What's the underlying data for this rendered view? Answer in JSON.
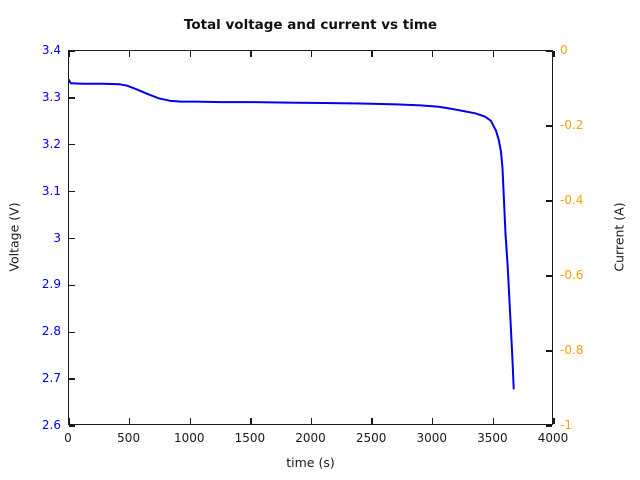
{
  "chart_data": {
    "type": "line",
    "title": "Total voltage and current vs time",
    "xlabel": "time (s)",
    "ylabel_left": "Voltage (V)",
    "ylabel_right": "Current (A)",
    "xlim": [
      0,
      4000
    ],
    "ylim_left": [
      2.6,
      3.4
    ],
    "ylim_right": [
      -1,
      0
    ],
    "grid": false,
    "legend": "none",
    "x_ticks": [
      0,
      500,
      1000,
      1500,
      2000,
      2500,
      3000,
      3500,
      4000
    ],
    "x_tick_labels": [
      "0",
      "500",
      "1000",
      "1500",
      "2000",
      "2500",
      "3000",
      "3500",
      "4000"
    ],
    "y_ticks_left": [
      3.4,
      3.3,
      3.2,
      3.1,
      3.0,
      2.9,
      2.8,
      2.7,
      2.6
    ],
    "y_tick_labels_left": [
      "3.4",
      "3.3",
      "3.2",
      "3.1",
      "3",
      "2.9",
      "2.8",
      "2.7",
      "2.6"
    ],
    "y_ticks_right": [
      0,
      -0.2,
      -0.4,
      -0.6,
      -0.8,
      -1
    ],
    "y_tick_labels_right": [
      "0",
      "-0.2",
      "-0.4",
      "-0.6",
      "-0.8",
      "-1"
    ],
    "colors": {
      "voltage_series": "#0000ee",
      "left_axis_labels": "#0000ee",
      "right_axis_labels": "#f0a30a",
      "axis_frame": "#1a1a1a",
      "title_text": "#111111"
    },
    "series": [
      {
        "name": "Total voltage",
        "axis": "left",
        "color": "#0000ee",
        "x": [
          0,
          15,
          120,
          280,
          420,
          480,
          560,
          650,
          740,
          830,
          920,
          1050,
          1250,
          1500,
          1800,
          2100,
          2400,
          2700,
          2900,
          3050,
          3150,
          3250,
          3350,
          3430,
          3480,
          3522,
          3545,
          3563,
          3575,
          3588,
          3600,
          3618,
          3632,
          3646,
          3658,
          3668
        ],
        "y": [
          3.338,
          3.331,
          3.33,
          3.33,
          3.329,
          3.326,
          3.318,
          3.308,
          3.299,
          3.294,
          3.292,
          3.292,
          3.291,
          3.291,
          3.29,
          3.289,
          3.288,
          3.286,
          3.284,
          3.281,
          3.277,
          3.272,
          3.267,
          3.26,
          3.251,
          3.23,
          3.21,
          3.185,
          3.15,
          3.08,
          3.01,
          2.94,
          2.87,
          2.8,
          2.74,
          2.68
        ]
      }
    ]
  }
}
